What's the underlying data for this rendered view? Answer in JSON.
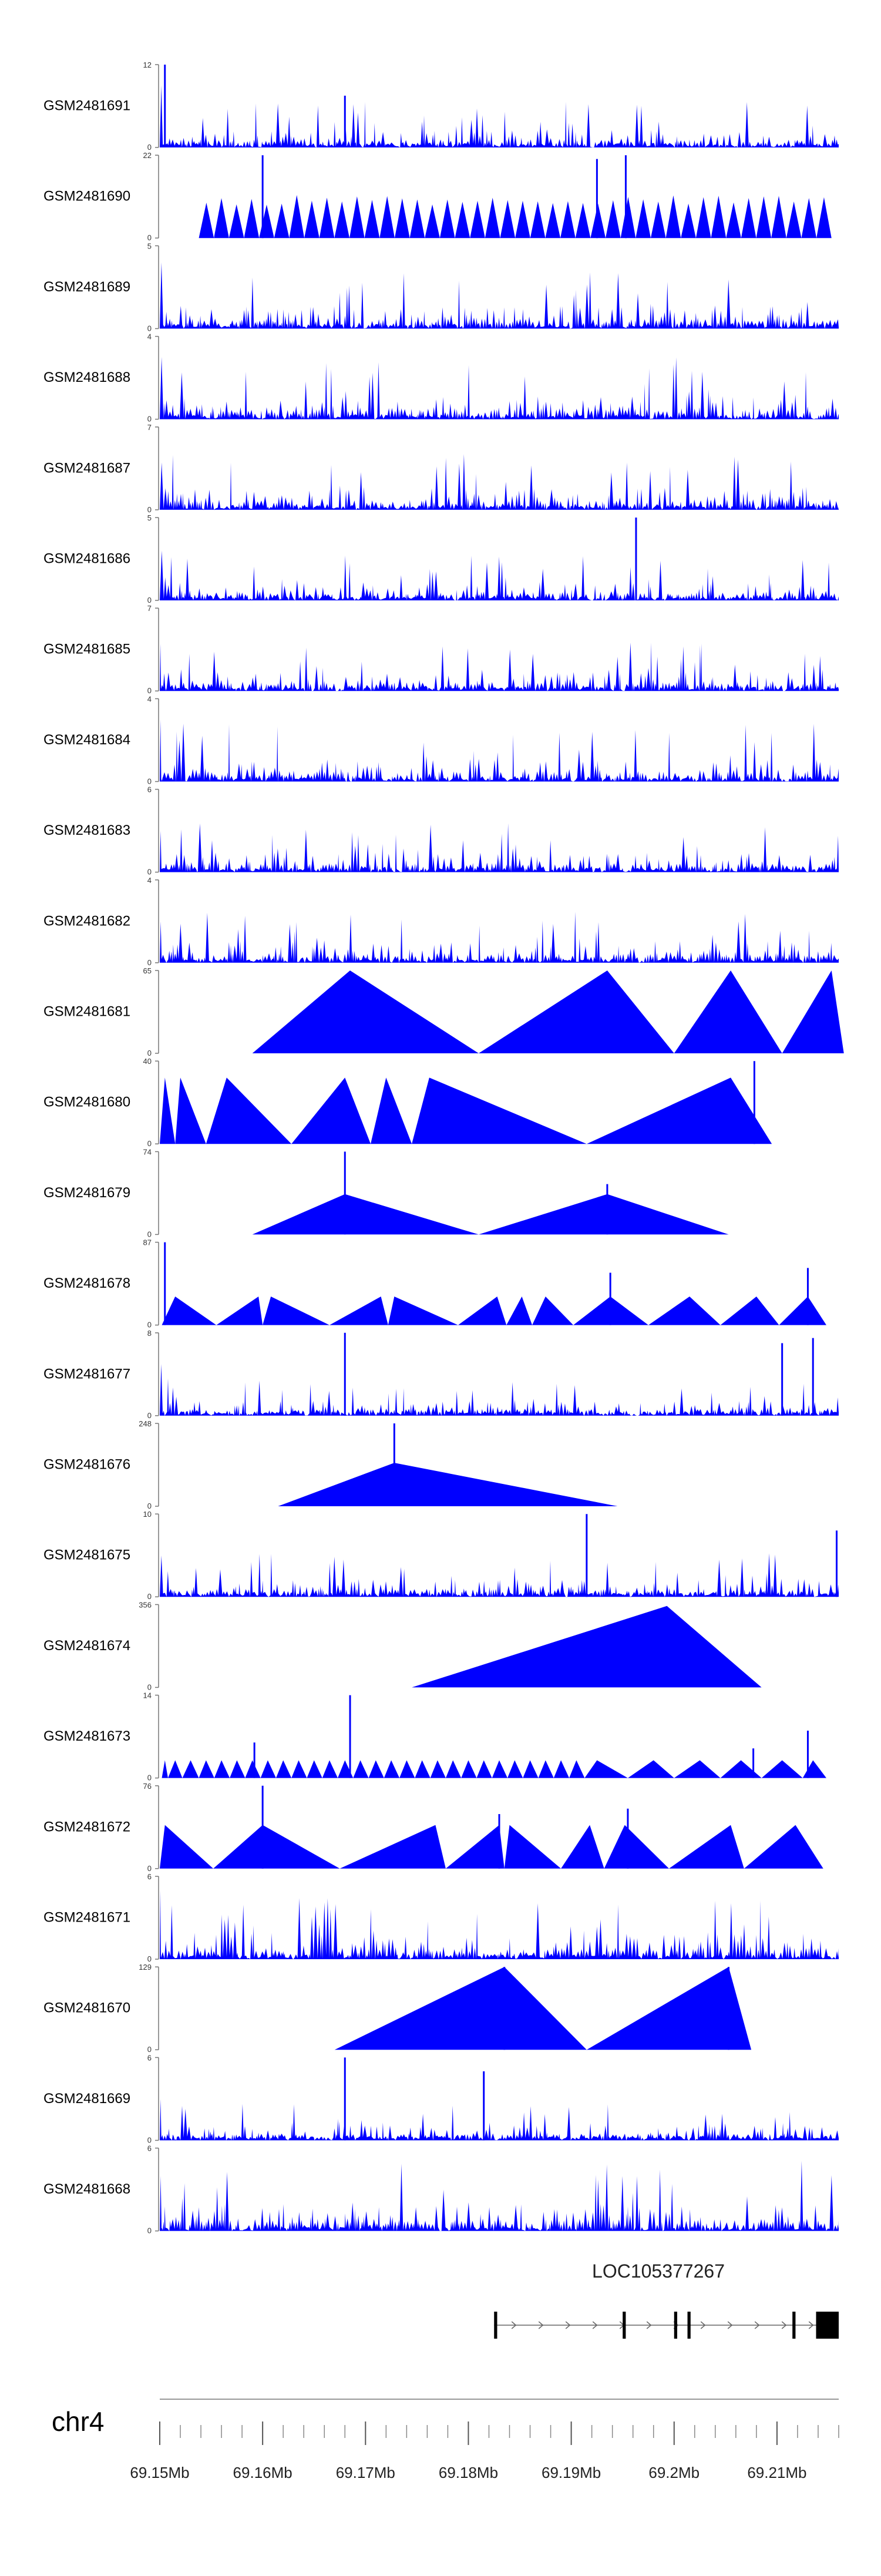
{
  "chart_data": {
    "type": "area",
    "title": "",
    "xlabel": "",
    "ylabel": "",
    "chromosome": "chr4",
    "xlim_mb": [
      69.15,
      69.216
    ],
    "x_ticks": [
      {
        "value": 69.15,
        "label": "69.15Mb"
      },
      {
        "value": 69.16,
        "label": "69.16Mb"
      },
      {
        "value": 69.17,
        "label": "69.17Mb"
      },
      {
        "value": 69.18,
        "label": "69.18Mb"
      },
      {
        "value": 69.19,
        "label": "69.19Mb"
      },
      {
        "value": 69.2,
        "label": "69.2Mb"
      },
      {
        "value": 69.21,
        "label": "69.21Mb"
      }
    ],
    "fill_color": "#0000ff",
    "tracks": [
      {
        "name": "GSM2481691",
        "ymin": 0,
        "ymax": 12,
        "mode": "dense",
        "peak": 0.55,
        "first": 9,
        "spikes": [
          {
            "x": 69.168,
            "y": 7.5
          },
          {
            "x": 69.1505,
            "y": 12
          }
        ]
      },
      {
        "name": "GSM2481690",
        "ymin": 0,
        "ymax": 22,
        "mode": "spread",
        "spikes": [
          {
            "x": 69.16,
            "y": 22
          },
          {
            "x": 69.1925,
            "y": 21
          },
          {
            "x": 69.1953,
            "y": 22
          }
        ]
      },
      {
        "name": "GSM2481689",
        "ymin": 0,
        "ymax": 5,
        "mode": "dense",
        "peak": 0.7,
        "first": 4
      },
      {
        "name": "GSM2481688",
        "ymin": 0,
        "ymax": 4,
        "mode": "dense",
        "peak": 0.75,
        "first": 3
      },
      {
        "name": "GSM2481687",
        "ymin": 0,
        "ymax": 7,
        "mode": "dense",
        "peak": 0.7,
        "first": 4
      },
      {
        "name": "GSM2481686",
        "ymin": 0,
        "ymax": 5,
        "mode": "dense",
        "peak": 0.55,
        "first": 3,
        "spikes": [
          {
            "x": 69.1963,
            "y": 5
          }
        ]
      },
      {
        "name": "GSM2481685",
        "ymin": 0,
        "ymax": 7,
        "mode": "dense",
        "peak": 0.6,
        "first": 4
      },
      {
        "name": "GSM2481684",
        "ymin": 0,
        "ymax": 4,
        "mode": "dense",
        "peak": 0.7,
        "first": 3
      },
      {
        "name": "GSM2481683",
        "ymin": 0,
        "ymax": 6,
        "mode": "dense",
        "peak": 0.6,
        "first": 3
      },
      {
        "name": "GSM2481682",
        "ymin": 0,
        "ymax": 4,
        "mode": "dense",
        "peak": 0.65,
        "first": 2
      },
      {
        "name": "GSM2481681",
        "ymin": 0,
        "ymax": 65,
        "mode": "triangles",
        "tri": [
          [
            69.159,
            69.1685,
            69.181,
            65
          ],
          [
            69.181,
            69.1935,
            69.2,
            65
          ],
          [
            69.2,
            69.2055,
            69.2105,
            65
          ],
          [
            69.2105,
            69.2153,
            69.2165,
            65
          ]
        ]
      },
      {
        "name": "GSM2481680",
        "ymin": 0,
        "ymax": 40,
        "mode": "triangles",
        "tri": [
          [
            69.15,
            69.1505,
            69.1515,
            32
          ],
          [
            69.1515,
            69.152,
            69.1545,
            32
          ],
          [
            69.1545,
            69.1565,
            69.1628,
            32
          ],
          [
            69.1628,
            69.168,
            69.1705,
            32
          ],
          [
            69.1705,
            69.172,
            69.1745,
            32
          ],
          [
            69.1745,
            69.1762,
            69.1915,
            32
          ],
          [
            69.1915,
            69.2055,
            69.2095,
            32
          ]
        ],
        "spikes": [
          {
            "x": 69.2078,
            "y": 40
          }
        ]
      },
      {
        "name": "GSM2481679",
        "ymin": 0,
        "ymax": 74,
        "mode": "triangles",
        "tri": [
          [
            69.159,
            69.168,
            69.181,
            36
          ],
          [
            69.181,
            69.1935,
            69.2053,
            36
          ]
        ],
        "spikes": [
          {
            "x": 69.168,
            "y": 74
          },
          {
            "x": 69.1935,
            "y": 45
          }
        ]
      },
      {
        "name": "GSM2481678",
        "ymin": 0,
        "ymax": 87,
        "mode": "triangles",
        "tri": [
          [
            69.1502,
            69.1515,
            69.1555,
            30
          ],
          [
            69.1555,
            69.1596,
            69.16,
            30
          ],
          [
            69.16,
            69.1608,
            69.1665,
            30
          ],
          [
            69.1665,
            69.1715,
            69.1722,
            30
          ],
          [
            69.1722,
            69.1728,
            69.179,
            30
          ],
          [
            69.179,
            69.1828,
            69.1837,
            30
          ],
          [
            69.1837,
            69.1852,
            69.1862,
            30
          ],
          [
            69.1862,
            69.1875,
            69.1902,
            30
          ],
          [
            69.1902,
            69.1938,
            69.1975,
            30
          ],
          [
            69.1975,
            69.2015,
            69.2045,
            30
          ],
          [
            69.2045,
            69.208,
            69.2102,
            30
          ],
          [
            69.2102,
            69.213,
            69.2148,
            30
          ]
        ],
        "spikes": [
          {
            "x": 69.1505,
            "y": 87
          },
          {
            "x": 69.1938,
            "y": 55
          },
          {
            "x": 69.213,
            "y": 60
          }
        ]
      },
      {
        "name": "GSM2481677",
        "ymin": 0,
        "ymax": 8,
        "mode": "dense",
        "peak": 0.45,
        "first": 5,
        "spikes": [
          {
            "x": 69.168,
            "y": 8
          },
          {
            "x": 69.2105,
            "y": 7
          },
          {
            "x": 69.2135,
            "y": 7.5
          }
        ]
      },
      {
        "name": "GSM2481676",
        "ymin": 0,
        "ymax": 248,
        "mode": "triangles",
        "tri": [
          [
            69.1615,
            69.1728,
            69.1945,
            130
          ]
        ],
        "spikes": [
          {
            "x": 69.1728,
            "y": 248
          }
        ]
      },
      {
        "name": "GSM2481675",
        "ymin": 0,
        "ymax": 10,
        "mode": "dense",
        "peak": 0.55,
        "first": 5,
        "spikes": [
          {
            "x": 69.1915,
            "y": 10
          },
          {
            "x": 69.2158,
            "y": 8
          }
        ]
      },
      {
        "name": "GSM2481674",
        "ymin": 0,
        "ymax": 356,
        "mode": "triangles",
        "tri": [
          [
            69.1745,
            69.1993,
            69.2085,
            350
          ]
        ]
      },
      {
        "name": "GSM2481673",
        "ymin": 0,
        "ymax": 14,
        "mode": "triangles",
        "tri": [
          [
            69.1502,
            69.1505,
            69.1508,
            3
          ],
          [
            69.1508,
            69.1515,
            69.1522,
            3
          ],
          [
            69.1522,
            69.153,
            69.1538,
            3
          ],
          [
            69.1538,
            69.1545,
            69.1553,
            3
          ],
          [
            69.1553,
            69.156,
            69.1568,
            3
          ],
          [
            69.1568,
            69.1575,
            69.1583,
            3
          ],
          [
            69.1583,
            69.159,
            69.1598,
            3
          ],
          [
            69.1598,
            69.1605,
            69.1613,
            3
          ],
          [
            69.1613,
            69.162,
            69.1628,
            3
          ],
          [
            69.1628,
            69.1635,
            69.1643,
            3
          ],
          [
            69.1643,
            69.165,
            69.1658,
            3
          ],
          [
            69.1658,
            69.1665,
            69.1673,
            3
          ],
          [
            69.1673,
            69.168,
            69.1688,
            3
          ],
          [
            69.1688,
            69.1695,
            69.1703,
            3
          ],
          [
            69.1703,
            69.171,
            69.1718,
            3
          ],
          [
            69.1718,
            69.1725,
            69.1733,
            3
          ],
          [
            69.1733,
            69.174,
            69.1748,
            3
          ],
          [
            69.1748,
            69.1755,
            69.1763,
            3
          ],
          [
            69.1763,
            69.177,
            69.1778,
            3
          ],
          [
            69.1778,
            69.1785,
            69.1793,
            3
          ],
          [
            69.1793,
            69.18,
            69.1808,
            3
          ],
          [
            69.1808,
            69.1815,
            69.1823,
            3
          ],
          [
            69.1823,
            69.183,
            69.1838,
            3
          ],
          [
            69.1838,
            69.1845,
            69.1853,
            3
          ],
          [
            69.1853,
            69.186,
            69.1868,
            3
          ],
          [
            69.1868,
            69.1875,
            69.1883,
            3
          ],
          [
            69.1883,
            69.189,
            69.1898,
            3
          ],
          [
            69.1898,
            69.1905,
            69.1913,
            3
          ],
          [
            69.1913,
            69.1925,
            69.1955,
            3
          ],
          [
            69.1955,
            69.198,
            69.2,
            3
          ],
          [
            69.2,
            69.2025,
            69.2045,
            3
          ],
          [
            69.2045,
            69.2065,
            69.2085,
            3
          ],
          [
            69.2085,
            69.2105,
            69.2125,
            3
          ],
          [
            69.2125,
            69.2135,
            69.2148,
            3
          ]
        ],
        "spikes": [
          {
            "x": 69.1685,
            "y": 14
          },
          {
            "x": 69.1592,
            "y": 6
          },
          {
            "x": 69.213,
            "y": 8
          },
          {
            "x": 69.2077,
            "y": 5
          }
        ]
      },
      {
        "name": "GSM2481672",
        "ymin": 0,
        "ymax": 76,
        "mode": "triangles",
        "tri": [
          [
            69.15,
            69.1505,
            69.1552,
            40
          ],
          [
            69.1552,
            69.16,
            69.1675,
            40
          ],
          [
            69.1675,
            69.1768,
            69.1778,
            40
          ],
          [
            69.1778,
            69.183,
            69.1835,
            40
          ],
          [
            69.1835,
            69.184,
            69.189,
            40
          ],
          [
            69.189,
            69.1918,
            69.1932,
            40
          ],
          [
            69.1932,
            69.1952,
            69.1995,
            40
          ],
          [
            69.1995,
            69.2055,
            69.2068,
            40
          ],
          [
            69.2068,
            69.2118,
            69.2145,
            40
          ]
        ],
        "spikes": [
          {
            "x": 69.16,
            "y": 76
          },
          {
            "x": 69.183,
            "y": 50
          },
          {
            "x": 69.1955,
            "y": 55
          }
        ]
      },
      {
        "name": "GSM2481671",
        "ymin": 0,
        "ymax": 6,
        "mode": "dense",
        "peak": 0.8,
        "first": 5
      },
      {
        "name": "GSM2481670",
        "ymin": 0,
        "ymax": 129,
        "mode": "triangles",
        "tri": [
          [
            69.167,
            69.1835,
            69.1915,
            129
          ],
          [
            69.1915,
            69.2053,
            69.2075,
            129
          ]
        ],
        "spikes": [
          {
            "x": 69.1835,
            "y": 129
          },
          {
            "x": 69.2053,
            "y": 129
          }
        ]
      },
      {
        "name": "GSM2481669",
        "ymin": 0,
        "ymax": 6,
        "mode": "dense",
        "peak": 0.45,
        "first": 3,
        "spikes": [
          {
            "x": 69.168,
            "y": 6
          },
          {
            "x": 69.1815,
            "y": 5
          }
        ]
      },
      {
        "name": "GSM2481668",
        "ymin": 0,
        "ymax": 6,
        "mode": "dense",
        "peak": 0.85,
        "first": 4
      }
    ],
    "gene": {
      "name": "LOC105377267",
      "start_mb": 69.1825,
      "end_mb": 69.216,
      "strand": "+",
      "exons": [
        [
          69.1825,
          69.1828
        ],
        [
          69.195,
          69.1953
        ],
        [
          69.2,
          69.2003
        ],
        [
          69.2013,
          69.2016
        ],
        [
          69.2115,
          69.2118
        ],
        [
          69.2138,
          69.216
        ]
      ]
    }
  }
}
